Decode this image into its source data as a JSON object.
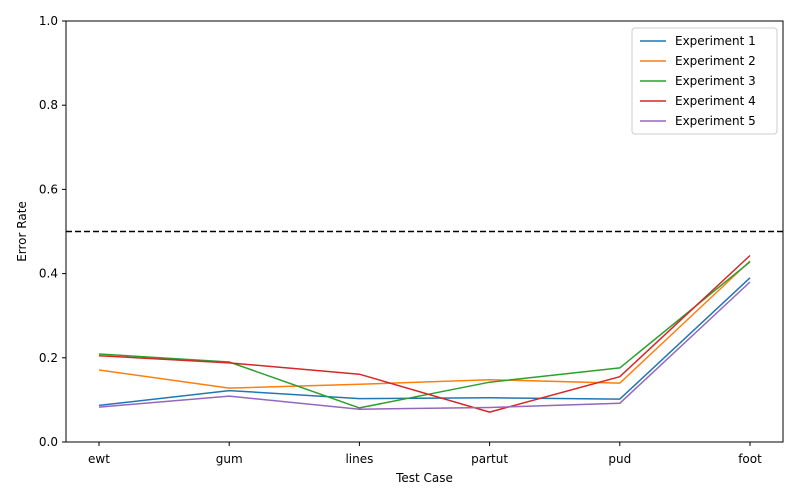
{
  "chart_data": {
    "type": "line",
    "categories": [
      "ewt",
      "gum",
      "lines",
      "partut",
      "pud",
      "foot"
    ],
    "xlabel": "Test Case",
    "ylabel": "Error Rate",
    "ylim": [
      0,
      1.0
    ],
    "yticks": [
      "0.0",
      "0.2",
      "0.4",
      "0.6",
      "0.8",
      "1.0"
    ],
    "grid": false,
    "legend_position": "top-right",
    "reference_line": {
      "y": 0.5,
      "style": "dashed",
      "color": "#000000"
    },
    "series": [
      {
        "name": "Experiment 1",
        "color": "#1f77b4",
        "values": [
          0.087,
          0.122,
          0.103,
          0.105,
          0.102,
          0.39
        ]
      },
      {
        "name": "Experiment 2",
        "color": "#ff7f0e",
        "values": [
          0.171,
          0.128,
          0.137,
          0.148,
          0.14,
          0.43
        ]
      },
      {
        "name": "Experiment 3",
        "color": "#2ca02c",
        "values": [
          0.209,
          0.19,
          0.081,
          0.142,
          0.176,
          0.428
        ]
      },
      {
        "name": "Experiment 4",
        "color": "#d62728",
        "values": [
          0.205,
          0.188,
          0.161,
          0.071,
          0.155,
          0.443
        ]
      },
      {
        "name": "Experiment 5",
        "color": "#9467bd",
        "values": [
          0.083,
          0.109,
          0.078,
          0.082,
          0.092,
          0.38
        ]
      }
    ]
  }
}
